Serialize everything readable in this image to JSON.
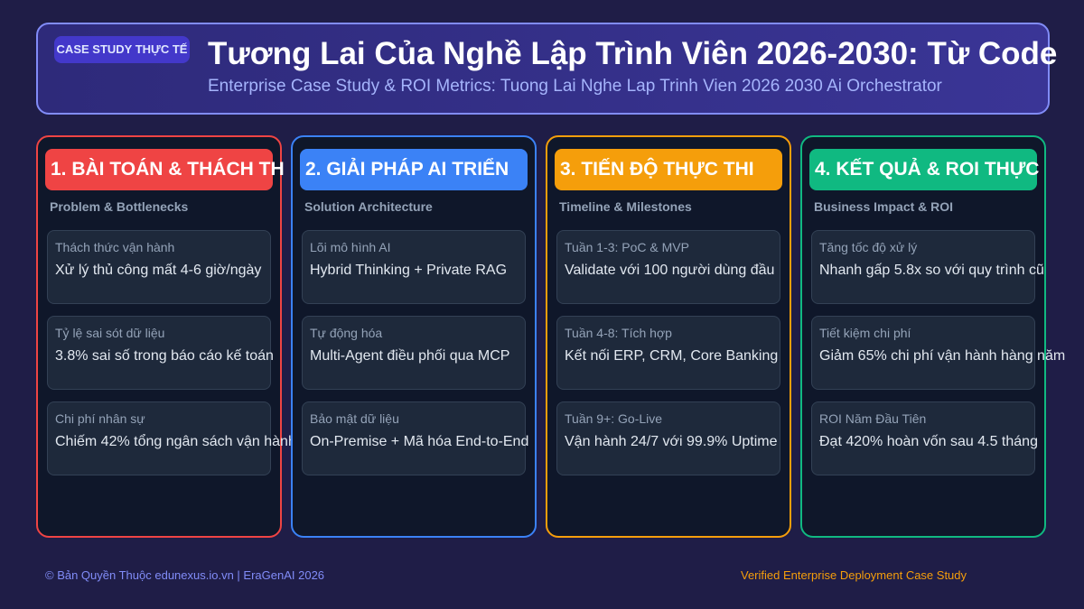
{
  "header": {
    "badge": "CASE STUDY THỰC TẾ",
    "title": "Tương Lai Của Nghề Lập Trình Viên 2026-2030: Từ Code",
    "subtitle": "Enterprise Case Study & ROI Metrics: Tuong Lai Nghe Lap Trinh Vien 2026 2030 Ai Orchestrator"
  },
  "columns": [
    {
      "heading": "1. BÀI TOÁN & THÁCH TH",
      "subheading": "Problem & Bottlenecks",
      "cards": [
        {
          "label": "Thách thức vận hành",
          "text": "Xử lý thủ công mất 4-6 giờ/ngày"
        },
        {
          "label": "Tỷ lệ sai sót dữ liệu",
          "text": "3.8% sai số trong báo cáo kế toán"
        },
        {
          "label": "Chi phí nhân sự",
          "text": "Chiếm 42% tổng ngân sách vận hành"
        }
      ]
    },
    {
      "heading": "2. GIẢI PHÁP AI TRIỂN",
      "subheading": "Solution Architecture",
      "cards": [
        {
          "label": "Lõi mô hình AI",
          "text": "Hybrid Thinking + Private RAG"
        },
        {
          "label": "Tự động hóa",
          "text": "Multi-Agent điều phối qua MCP"
        },
        {
          "label": "Bảo mật dữ liệu",
          "text": "On-Premise + Mã hóa End-to-End"
        }
      ]
    },
    {
      "heading": "3. TIẾN ĐỘ THỰC THI",
      "subheading": "Timeline & Milestones",
      "cards": [
        {
          "label": "Tuần 1-3: PoC & MVP",
          "text": "Validate với 100 người dùng đầu"
        },
        {
          "label": "Tuần 4-8: Tích hợp",
          "text": "Kết nối ERP, CRM, Core Banking"
        },
        {
          "label": "Tuần 9+: Go-Live",
          "text": "Vận hành 24/7 với 99.9% Uptime"
        }
      ]
    },
    {
      "heading": "4. KẾT QUẢ & ROI THỰC",
      "subheading": "Business Impact & ROI",
      "cards": [
        {
          "label": "Tăng tốc độ xử lý",
          "text": "Nhanh gấp 5.8x so với quy trình cũ"
        },
        {
          "label": "Tiết kiệm chi phí",
          "text": "Giảm 65% chi phí vận hành hàng năm"
        },
        {
          "label": "ROI Năm Đầu Tiên",
          "text": "Đạt 420% hoàn vốn sau 4.5 tháng"
        }
      ]
    }
  ],
  "footer": {
    "left": "© Bản Quyền Thuộc edunexus.io.vn | EraGenAI 2026",
    "right": "Verified Enterprise Deployment Case Study"
  }
}
